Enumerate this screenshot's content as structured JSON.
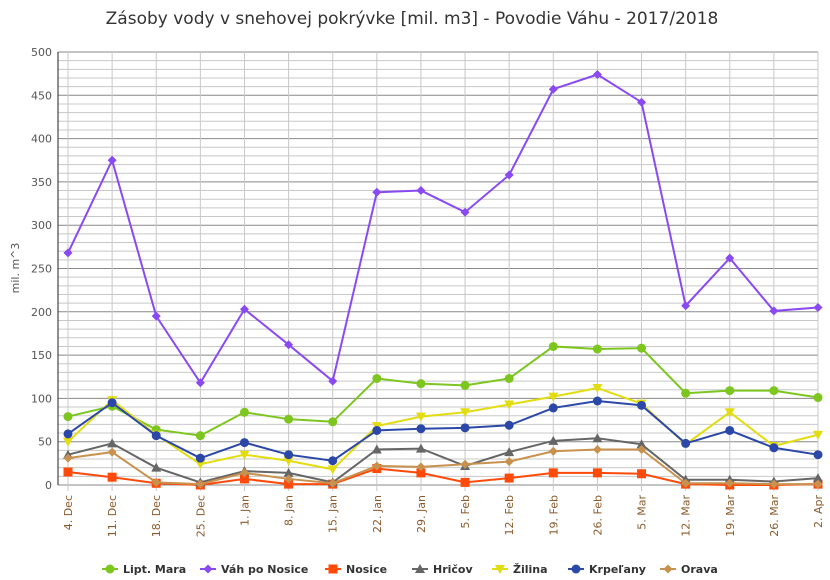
{
  "chart_data": {
    "type": "line",
    "title": "Zásoby vody v snehovej pokrývke [mil. m3] - Povodie Váhu - 2017/2018",
    "ylabel": "mil. m^3",
    "xlabel": "",
    "ylim": [
      0,
      500
    ],
    "yticks": [
      0,
      50,
      100,
      150,
      200,
      250,
      300,
      350,
      400,
      450,
      500
    ],
    "grid": true,
    "legend": "bottom",
    "categories": [
      "4. Dec",
      "11. Dec",
      "18. Dec",
      "25. Dec",
      "1. Jan",
      "8. Jan",
      "15. Jan",
      "22. Jan",
      "29. Jan",
      "5. Feb",
      "12. Feb",
      "19. Feb",
      "26. Feb",
      "5. Mar",
      "12. Mar",
      "19. Mar",
      "26. Mar",
      "2. Apr"
    ],
    "series": [
      {
        "name": "Lipt. Mara",
        "color": "#7cc61f",
        "marker": "circle",
        "values": [
          79,
          91,
          64,
          57,
          84,
          76,
          73,
          123,
          117,
          115,
          123,
          160,
          157,
          158,
          106,
          109,
          109,
          101
        ]
      },
      {
        "name": "Váh po Nosice",
        "color": "#8a4af3",
        "marker": "diamond",
        "values": [
          268,
          375,
          195,
          118,
          203,
          162,
          120,
          338,
          340,
          315,
          358,
          457,
          474,
          442,
          207,
          262,
          201,
          205
        ]
      },
      {
        "name": "Nosice",
        "color": "#ff4a0a",
        "marker": "square",
        "values": [
          15,
          9,
          2,
          0,
          7,
          1,
          1,
          19,
          14,
          3,
          8,
          14,
          14,
          13,
          1,
          0,
          0,
          1
        ]
      },
      {
        "name": "Hričov",
        "color": "#666666",
        "marker": "triangle",
        "values": [
          35,
          48,
          20,
          3,
          16,
          14,
          3,
          41,
          42,
          22,
          38,
          51,
          54,
          47,
          6,
          6,
          4,
          8
        ]
      },
      {
        "name": "Žilina",
        "color": "#e2dc10",
        "marker": "triangle-down",
        "values": [
          50,
          98,
          58,
          24,
          35,
          28,
          18,
          68,
          79,
          84,
          93,
          102,
          112,
          94,
          47,
          84,
          45,
          58
        ]
      },
      {
        "name": "Krpeľany",
        "color": "#2b48a8",
        "marker": "circle",
        "values": [
          59,
          95,
          57,
          31,
          49,
          35,
          28,
          63,
          65,
          66,
          69,
          89,
          97,
          92,
          48,
          63,
          43,
          35
        ]
      },
      {
        "name": "Orava",
        "color": "#c8924e",
        "marker": "diamond",
        "values": [
          31,
          38,
          3,
          1,
          14,
          7,
          2,
          22,
          21,
          24,
          27,
          39,
          41,
          41,
          2,
          2,
          1,
          1
        ]
      }
    ]
  }
}
